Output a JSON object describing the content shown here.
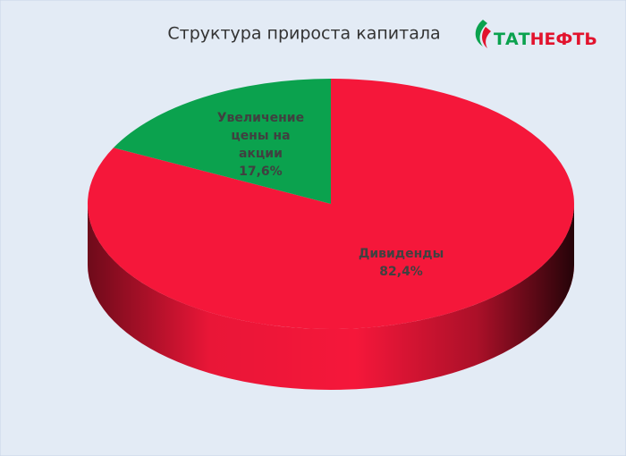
{
  "chart_data": {
    "type": "pie3d",
    "title": "Структура прироста капитала",
    "logo": [
      "ТАТ",
      "НЕФТЬ"
    ],
    "categories": [
      "Дивиденды",
      "Увеличение цены на акции"
    ],
    "values": [
      82.4,
      17.6
    ],
    "value_labels": [
      "82,4%",
      "17,6%"
    ],
    "colors": [
      "#f5173a",
      "#0ba24e"
    ]
  }
}
